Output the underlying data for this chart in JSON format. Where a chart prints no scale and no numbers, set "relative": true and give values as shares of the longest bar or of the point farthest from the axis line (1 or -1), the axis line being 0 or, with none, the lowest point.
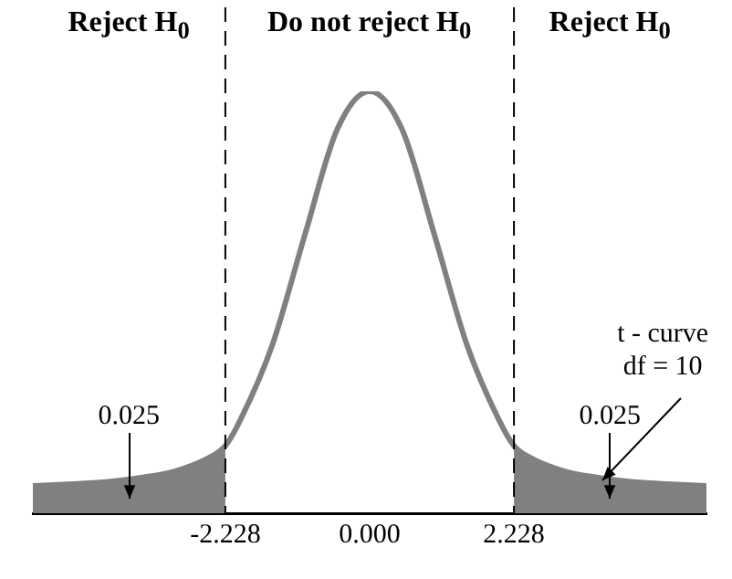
{
  "chart_data": {
    "type": "line",
    "relative": true,
    "xlim": [
      -5.2,
      5.2
    ],
    "xticks": [
      -2.228,
      {
        "value": 0,
        "label": "0.000"
      },
      2.228
    ],
    "grid": false,
    "marker": "none",
    "series": [
      {
        "type": "area",
        "color": "#808080",
        "x": [
          -5.2,
          -4.5,
          -4,
          -3.5,
          -3,
          -2.5,
          -2.228
        ],
        "values": [
          0.065,
          0.07,
          0.075,
          0.085,
          0.1,
          0.13,
          0.16
        ]
      },
      {
        "type": "line",
        "color": "#808080",
        "x": [
          -5.2,
          -4.5,
          -4,
          -3.5,
          -3,
          -2.5,
          -2.228,
          -2,
          -1.5,
          -1,
          -0.5,
          0,
          0.5,
          1,
          1.5,
          2,
          2.228,
          2.5,
          3,
          3.5,
          4,
          4.5,
          5.2
        ],
        "values": [
          0.065,
          0.07,
          0.075,
          0.085,
          0.1,
          0.13,
          0.16,
          0.22,
          0.4,
          0.66,
          0.91,
          1,
          0.91,
          0.66,
          0.4,
          0.22,
          0.16,
          0.13,
          0.1,
          0.085,
          0.075,
          0.07,
          0.065
        ]
      },
      {
        "type": "area",
        "color": "#808080",
        "x": [
          2.228,
          2.5,
          3,
          3.5,
          4,
          4.5,
          5.2
        ],
        "values": [
          0.16,
          0.13,
          0.1,
          0.085,
          0.075,
          0.07,
          0.065
        ]
      }
    ],
    "ref_lines": [
      {
        "axis": "x",
        "value": -2.228,
        "color": "#000000",
        "line_style": "dashed"
      },
      {
        "axis": "x",
        "value": 2.228,
        "color": "#000000",
        "line_style": "dashed"
      }
    ],
    "annotations": [
      "Reject H$_{0}$",
      "Do not reject H$_{0}$",
      "Reject H$_{0}$",
      "0.025",
      "0.025",
      {
        "text": "t - curve\ndf = 10",
        "x": 3.54,
        "y": 0.065
      }
    ]
  }
}
